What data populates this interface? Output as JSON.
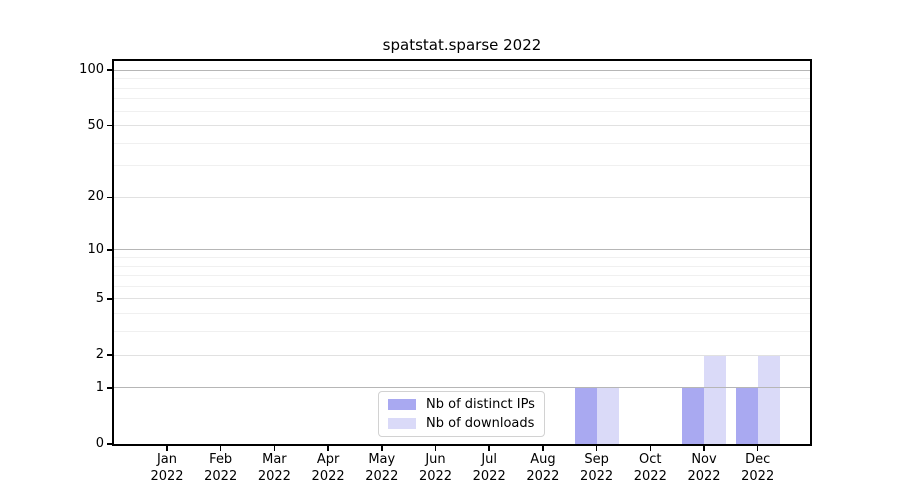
{
  "title": "spatstat.sparse 2022",
  "legend": {
    "items": [
      {
        "label": "Nb of distinct IPs",
        "color": "#a9a9f1"
      },
      {
        "label": "Nb of downloads",
        "color": "#dadaf8"
      }
    ]
  },
  "colors": {
    "grid_decade": "#b6b6b6",
    "grid_major": "#e1e1e1",
    "grid_minor": "#f0f0f0",
    "axis": "#000000",
    "background": "#ffffff"
  },
  "chart_data": {
    "type": "bar",
    "title": "spatstat.sparse 2022",
    "categories": [
      "Jan 2022",
      "Feb 2022",
      "Mar 2022",
      "Apr 2022",
      "May 2022",
      "Jun 2022",
      "Jul 2022",
      "Aug 2022",
      "Sep 2022",
      "Oct 2022",
      "Nov 2022",
      "Dec 2022"
    ],
    "series": [
      {
        "name": "Nb of distinct IPs",
        "color": "#a9a9f1",
        "values": [
          0,
          0,
          0,
          0,
          0,
          0,
          0,
          0,
          1,
          0,
          1,
          1
        ]
      },
      {
        "name": "Nb of downloads",
        "color": "#dadaf8",
        "values": [
          0,
          0,
          0,
          0,
          0,
          0,
          0,
          0,
          1,
          0,
          2,
          2
        ]
      }
    ],
    "xlabel": "",
    "ylabel": "",
    "yscale": "log10(1+x)",
    "ylim": [
      0,
      112
    ],
    "yticks": [
      0,
      1,
      2,
      5,
      10,
      20,
      50,
      100
    ],
    "y_major_gridlines": [
      1,
      2,
      5,
      10,
      20,
      50,
      100
    ],
    "y_emphasized_gridlines": [
      1,
      10,
      100
    ],
    "y_minor_gridlines": [
      3,
      4,
      6,
      7,
      8,
      9,
      30,
      40,
      60,
      70,
      80,
      90
    ],
    "grid": "horizontal",
    "legend_position": "lower center"
  }
}
